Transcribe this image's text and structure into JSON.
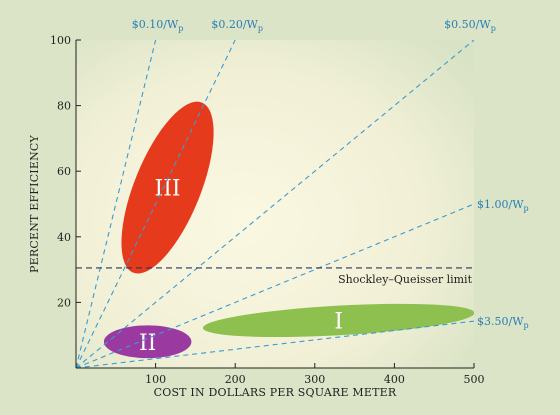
{
  "chart_data": {
    "type": "scatter",
    "title": "",
    "xlabel": "COST IN DOLLARS PER SQUARE METER",
    "ylabel": "PERCENT EFFICIENCY",
    "xlim": [
      0,
      500
    ],
    "ylim": [
      0,
      100
    ],
    "xticks": [
      100,
      200,
      300,
      400,
      500
    ],
    "yticks": [
      20,
      40,
      60,
      80,
      100
    ],
    "grid": false,
    "colors": {
      "background_light": "#fbf8e2",
      "background_dark": "#d8e2c4",
      "cost_lines": "#3a9bd5",
      "region_I": "#8dc04e",
      "region_II": "#9a3aa0",
      "region_III": "#e63a1c",
      "limit_line": "#2a3560"
    },
    "cost_lines": [
      {
        "label": "$0.10/W",
        "sub": "p",
        "dollars_per_watt": 0.1
      },
      {
        "label": "$0.20/W",
        "sub": "p",
        "dollars_per_watt": 0.2
      },
      {
        "label": "$0.50/W",
        "sub": "p",
        "dollars_per_watt": 0.5
      },
      {
        "label": "$1.00/W",
        "sub": "p",
        "dollars_per_watt": 1.0
      },
      {
        "label": "$3.50/W",
        "sub": "p",
        "dollars_per_watt": 3.5
      }
    ],
    "reference_line": {
      "label": "Shockley–Queisser limit",
      "y": 30.5
    },
    "regions": [
      {
        "label": "I",
        "cost_range": [
          160,
          500
        ],
        "efficiency_range": [
          9,
          20
        ],
        "center": [
          330,
          14.5
        ]
      },
      {
        "label": "II",
        "cost_range": [
          35,
          145
        ],
        "efficiency_range": [
          3,
          13
        ],
        "center": [
          90,
          8
        ]
      },
      {
        "label": "III",
        "cost_range": [
          45,
          185
        ],
        "efficiency_range": [
          28,
          82
        ],
        "center": [
          115,
          55
        ]
      }
    ]
  }
}
